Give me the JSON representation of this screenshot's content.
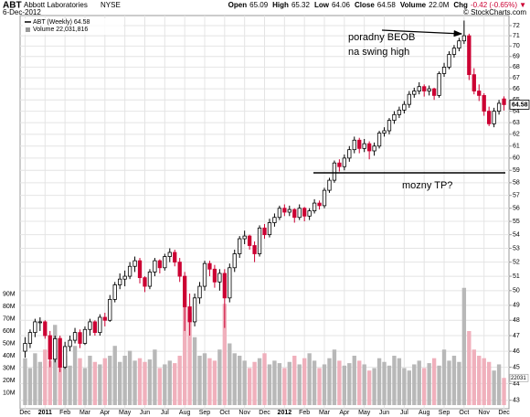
{
  "header": {
    "symbol": "ABT",
    "name": "Abbott Laboratories",
    "exchange": "NYSE",
    "date": "6-Dec-2012",
    "quote": [
      {
        "label": "Open",
        "value": "65.09"
      },
      {
        "label": "High",
        "value": "65.32"
      },
      {
        "label": "Low",
        "value": "64.06"
      },
      {
        "label": "Close",
        "value": "64.58"
      },
      {
        "label": "Volume",
        "value": "22.0M"
      },
      {
        "label": "Chg",
        "value": "-0.42 (-0.65%)"
      }
    ],
    "copyright": "© StockCharts.com"
  },
  "chart_data": {
    "type": "candlestick",
    "legend": "ABT (Weekly) 64.58",
    "volume_legend": "Volume 22,031,816",
    "price_tag": "64.58",
    "volume_tag": "22031",
    "log_scale": true,
    "grid": true,
    "ylim": [
      42.5,
      73
    ],
    "yticks": [
      43,
      44,
      45,
      46,
      47,
      48,
      49,
      50,
      51,
      52,
      53,
      54,
      55,
      56,
      57,
      58,
      59,
      60,
      61,
      62,
      63,
      64,
      65,
      66,
      67,
      68,
      69,
      70,
      71,
      72
    ],
    "vlim": [
      0,
      100
    ],
    "vticks": [
      {
        "value": 10,
        "label": "10M"
      },
      {
        "value": 20,
        "label": "20M"
      },
      {
        "value": 30,
        "label": "30M"
      },
      {
        "value": 40,
        "label": "40M"
      },
      {
        "value": 50,
        "label": "50M"
      },
      {
        "value": 60,
        "label": "60M"
      },
      {
        "value": 70,
        "label": "70M"
      },
      {
        "value": 80,
        "label": "80M"
      },
      {
        "value": 90,
        "label": "90M"
      }
    ],
    "xlim": [
      -1,
      97
    ],
    "xticks": [
      {
        "value": 0,
        "label": "Dec"
      },
      {
        "value": 4,
        "label": "2011"
      },
      {
        "value": 8,
        "label": "Feb"
      },
      {
        "value": 12,
        "label": "Mar"
      },
      {
        "value": 16,
        "label": "Apr"
      },
      {
        "value": 20,
        "label": "May"
      },
      {
        "value": 24,
        "label": "Jun"
      },
      {
        "value": 28,
        "label": "Jul"
      },
      {
        "value": 32,
        "label": "Aug"
      },
      {
        "value": 36,
        "label": "Sep"
      },
      {
        "value": 40,
        "label": "Oct"
      },
      {
        "value": 44,
        "label": "Nov"
      },
      {
        "value": 48,
        "label": "Dec"
      },
      {
        "value": 52,
        "label": "2012"
      },
      {
        "value": 56,
        "label": "Feb"
      },
      {
        "value": 60,
        "label": "Mar"
      },
      {
        "value": 64,
        "label": "Apr"
      },
      {
        "value": 68,
        "label": "May"
      },
      {
        "value": 72,
        "label": "Jun"
      },
      {
        "value": 76,
        "label": "Jul"
      },
      {
        "value": 80,
        "label": "Aug"
      },
      {
        "value": 84,
        "label": "Sep"
      },
      {
        "value": 88,
        "label": "Oct"
      },
      {
        "value": 92,
        "label": "Nov"
      },
      {
        "value": 96,
        "label": "Dec"
      }
    ],
    "up_color": "#ffffff",
    "down_color": "#cc0033",
    "volume_up_color": "#b8b8b8",
    "volume_down_color": "#f0b0bc",
    "ohlc": [
      [
        46.0,
        46.9,
        45.6,
        46.5
      ],
      [
        46.5,
        47.4,
        46.2,
        47.2
      ],
      [
        47.2,
        48.1,
        46.9,
        47.9
      ],
      [
        47.9,
        48.2,
        47.3,
        47.9
      ],
      [
        47.9,
        48.0,
        46.8,
        47.0
      ],
      [
        47.0,
        47.3,
        45.0,
        45.5
      ],
      [
        45.5,
        47.0,
        45.3,
        46.8
      ],
      [
        46.8,
        47.0,
        44.7,
        45.0
      ],
      [
        45.0,
        46.6,
        44.9,
        46.3
      ],
      [
        46.3,
        47.0,
        46.0,
        46.7
      ],
      [
        46.7,
        47.5,
        46.5,
        47.2
      ],
      [
        47.2,
        47.4,
        46.2,
        46.5
      ],
      [
        46.5,
        47.6,
        46.4,
        47.4
      ],
      [
        47.4,
        48.1,
        47.0,
        47.9
      ],
      [
        47.9,
        48.0,
        47.0,
        47.2
      ],
      [
        47.2,
        48.4,
        47.0,
        48.2
      ],
      [
        48.2,
        48.5,
        47.6,
        48.0
      ],
      [
        48.0,
        49.7,
        47.9,
        49.4
      ],
      [
        49.4,
        50.6,
        49.2,
        50.4
      ],
      [
        50.4,
        51.2,
        50.1,
        50.8
      ],
      [
        50.8,
        51.4,
        50.3,
        51.0
      ],
      [
        51.0,
        52.0,
        50.8,
        51.7
      ],
      [
        51.7,
        52.4,
        51.3,
        52.1
      ],
      [
        52.1,
        52.3,
        50.5,
        50.9
      ],
      [
        50.9,
        51.0,
        49.9,
        50.3
      ],
      [
        50.3,
        51.5,
        50.1,
        51.3
      ],
      [
        51.3,
        52.3,
        51.0,
        52.1
      ],
      [
        52.1,
        52.2,
        51.2,
        51.6
      ],
      [
        51.6,
        52.6,
        51.4,
        52.4
      ],
      [
        52.4,
        53.0,
        52.0,
        52.7
      ],
      [
        52.7,
        52.9,
        51.7,
        52.0
      ],
      [
        52.0,
        52.3,
        50.6,
        51.0
      ],
      [
        51.0,
        51.3,
        47.3,
        48.9
      ],
      [
        48.9,
        49.8,
        47.0,
        47.9
      ],
      [
        47.9,
        49.8,
        47.6,
        49.5
      ],
      [
        49.5,
        50.6,
        49.1,
        50.3
      ],
      [
        50.3,
        52.1,
        50.0,
        51.9
      ],
      [
        51.9,
        52.1,
        51.0,
        51.5
      ],
      [
        51.5,
        51.8,
        50.2,
        50.6
      ],
      [
        50.6,
        51.5,
        50.0,
        51.2
      ],
      [
        51.2,
        51.5,
        47.5,
        49.5
      ],
      [
        49.5,
        51.9,
        49.2,
        51.6
      ],
      [
        51.6,
        52.9,
        51.3,
        52.6
      ],
      [
        52.6,
        53.9,
        52.3,
        53.7
      ],
      [
        53.7,
        54.3,
        53.3,
        53.9
      ],
      [
        53.9,
        54.0,
        52.9,
        53.2
      ],
      [
        53.2,
        53.5,
        52.0,
        52.6
      ],
      [
        52.6,
        54.7,
        52.4,
        54.5
      ],
      [
        54.5,
        54.8,
        53.7,
        54.0
      ],
      [
        54.0,
        55.2,
        53.8,
        54.9
      ],
      [
        54.9,
        55.6,
        54.6,
        55.3
      ],
      [
        55.3,
        56.2,
        55.1,
        56.0
      ],
      [
        56.0,
        56.3,
        55.4,
        55.7
      ],
      [
        55.7,
        56.2,
        55.4,
        55.9
      ],
      [
        55.9,
        56.0,
        54.9,
        55.3
      ],
      [
        55.3,
        56.3,
        55.1,
        56.0
      ],
      [
        56.0,
        56.1,
        55.0,
        55.4
      ],
      [
        55.4,
        56.0,
        55.1,
        55.8
      ],
      [
        55.8,
        56.7,
        55.6,
        56.4
      ],
      [
        56.4,
        56.6,
        55.9,
        56.2
      ],
      [
        56.2,
        57.6,
        56.0,
        57.4
      ],
      [
        57.4,
        58.4,
        57.2,
        58.2
      ],
      [
        58.2,
        59.8,
        58.0,
        59.6
      ],
      [
        59.6,
        59.9,
        58.9,
        59.3
      ],
      [
        59.3,
        60.3,
        59.0,
        60.0
      ],
      [
        60.0,
        61.0,
        59.7,
        60.7
      ],
      [
        60.7,
        61.8,
        60.4,
        61.5
      ],
      [
        61.5,
        61.7,
        60.4,
        60.8
      ],
      [
        60.8,
        61.6,
        60.5,
        61.2
      ],
      [
        61.2,
        61.4,
        59.9,
        60.6
      ],
      [
        60.6,
        61.3,
        60.2,
        61.0
      ],
      [
        61.0,
        62.3,
        60.8,
        62.1
      ],
      [
        62.1,
        62.6,
        61.8,
        62.3
      ],
      [
        62.3,
        63.4,
        62.0,
        63.2
      ],
      [
        63.2,
        64.0,
        62.9,
        63.7
      ],
      [
        63.7,
        64.4,
        63.4,
        64.1
      ],
      [
        64.1,
        64.9,
        63.8,
        64.6
      ],
      [
        64.6,
        65.8,
        64.3,
        65.5
      ],
      [
        65.5,
        66.1,
        65.2,
        65.8
      ],
      [
        65.8,
        66.6,
        65.5,
        66.2
      ],
      [
        66.2,
        66.4,
        65.3,
        65.8
      ],
      [
        65.8,
        66.3,
        65.4,
        66.0
      ],
      [
        66.0,
        66.1,
        65.0,
        65.4
      ],
      [
        65.4,
        67.6,
        65.2,
        67.4
      ],
      [
        67.4,
        68.4,
        67.1,
        68.0
      ],
      [
        68.0,
        69.5,
        67.8,
        69.2
      ],
      [
        69.2,
        70.1,
        68.9,
        69.8
      ],
      [
        69.8,
        70.8,
        69.5,
        70.5
      ],
      [
        70.5,
        72.5,
        70.2,
        71.0
      ],
      [
        71.0,
        71.2,
        66.8,
        67.3
      ],
      [
        67.3,
        67.9,
        65.5,
        65.8
      ],
      [
        65.8,
        66.4,
        64.9,
        65.4
      ],
      [
        65.4,
        65.6,
        63.6,
        64.0
      ],
      [
        64.0,
        64.4,
        62.7,
        62.9
      ],
      [
        62.9,
        64.3,
        62.6,
        64.0
      ],
      [
        64.0,
        65.0,
        63.7,
        64.7
      ],
      [
        65.09,
        65.32,
        64.06,
        64.58
      ]
    ],
    "volume": [
      38,
      30,
      42,
      35,
      45,
      36,
      65,
      55,
      40,
      32,
      48,
      38,
      30,
      40,
      35,
      33,
      38,
      40,
      48,
      35,
      40,
      44,
      36,
      38,
      35,
      37,
      45,
      30,
      33,
      36,
      34,
      40,
      80,
      75,
      55,
      40,
      42,
      38,
      36,
      45,
      82,
      50,
      42,
      40,
      36,
      30,
      35,
      38,
      42,
      33,
      36,
      34,
      30,
      35,
      40,
      33,
      38,
      42,
      36,
      30,
      33,
      38,
      45,
      36,
      32,
      34,
      40,
      36,
      33,
      28,
      30,
      38,
      35,
      32,
      40,
      38,
      30,
      28,
      33,
      36,
      30,
      34,
      38,
      32,
      45,
      36,
      40,
      35,
      95,
      60,
      45,
      40,
      38,
      35,
      28,
      33,
      22.031816
    ],
    "hline": 58.8,
    "annotations": [
      {
        "text": "poradny BEOB"
      },
      {
        "text": "na swing high"
      },
      {
        "text": "mozny TP?"
      }
    ]
  }
}
